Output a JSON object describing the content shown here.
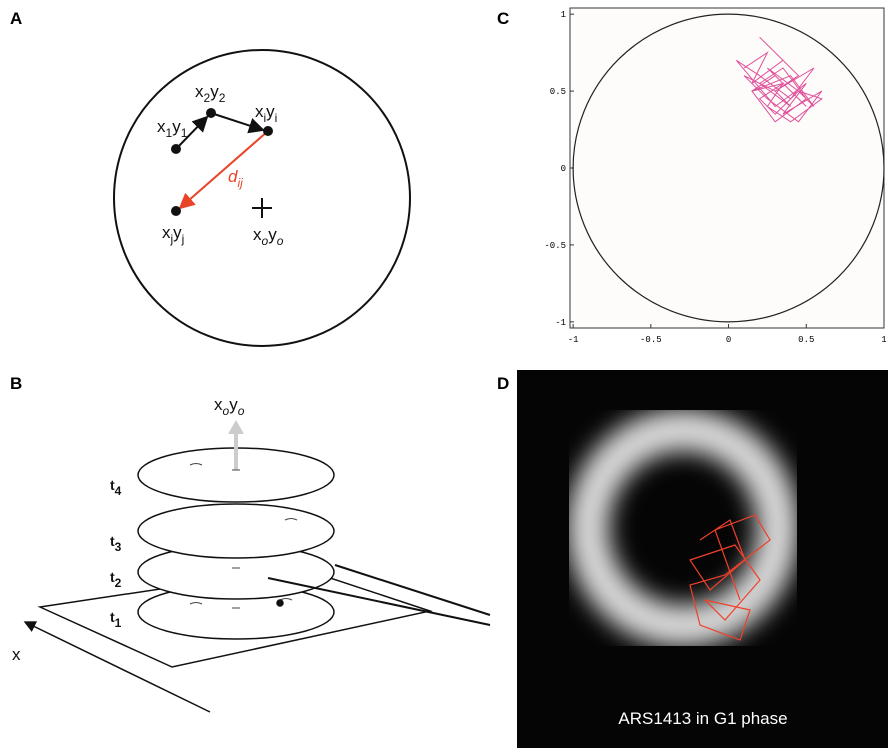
{
  "panel_labels": [
    "A",
    "B",
    "C",
    "D"
  ],
  "panel_a": {
    "points": [
      [
        "x",
        "1",
        "y",
        "1"
      ],
      [
        "x",
        "2",
        "y",
        "2"
      ],
      [
        "x",
        "i",
        "y",
        "i"
      ],
      [
        "x",
        "j",
        "y",
        "j"
      ]
    ],
    "origin": [
      "x",
      "o",
      "y",
      "o"
    ],
    "distance": [
      "d",
      "ij"
    ]
  },
  "panel_b": {
    "origin": [
      "x",
      "o",
      "y",
      "o"
    ],
    "times": [
      [
        "t",
        "4"
      ],
      [
        "t",
        "3"
      ],
      [
        "t",
        "2"
      ],
      [
        "t",
        "1"
      ]
    ],
    "axis": "x"
  },
  "chart_data": {
    "type": "line",
    "x": [
      0.1,
      0.25,
      0.15,
      0.35,
      0.2,
      0.45,
      0.3,
      0.55,
      0.4,
      0.2,
      0.05,
      0.3,
      0.5,
      0.35,
      0.6,
      0.45,
      0.25,
      0.1,
      0.3,
      0.4,
      0.2,
      0.35,
      0.5,
      0.3,
      0.15,
      0.4,
      0.55,
      0.45,
      0.25,
      0.35,
      0.2,
      0.3,
      0.45,
      0.6,
      0.4,
      0.25,
      0.35,
      0.15,
      0.3,
      0.5
    ],
    "series": [
      {
        "color": "#e0509a",
        "values": [
          0.65,
          0.75,
          0.55,
          0.7,
          0.85,
          0.6,
          0.5,
          0.65,
          0.45,
          0.6,
          0.7,
          0.4,
          0.55,
          0.35,
          0.5,
          0.3,
          0.45,
          0.6,
          0.5,
          0.4,
          0.55,
          0.65,
          0.45,
          0.3,
          0.5,
          0.6,
          0.4,
          0.5,
          0.65,
          0.55,
          0.45,
          0.35,
          0.5,
          0.45,
          0.3,
          0.4,
          0.55,
          0.5,
          0.6,
          0.4
        ]
      }
    ],
    "xlim": [
      -1.02,
      1.0
    ],
    "ylim": [
      -1.04,
      1.04
    ],
    "xticks": [
      -1,
      -0.5,
      0,
      0.5,
      1
    ],
    "yticks": [
      -1,
      -0.5,
      0,
      0.5,
      1
    ]
  },
  "panel_d": {
    "caption": "ARS1413 in G1 phase"
  }
}
